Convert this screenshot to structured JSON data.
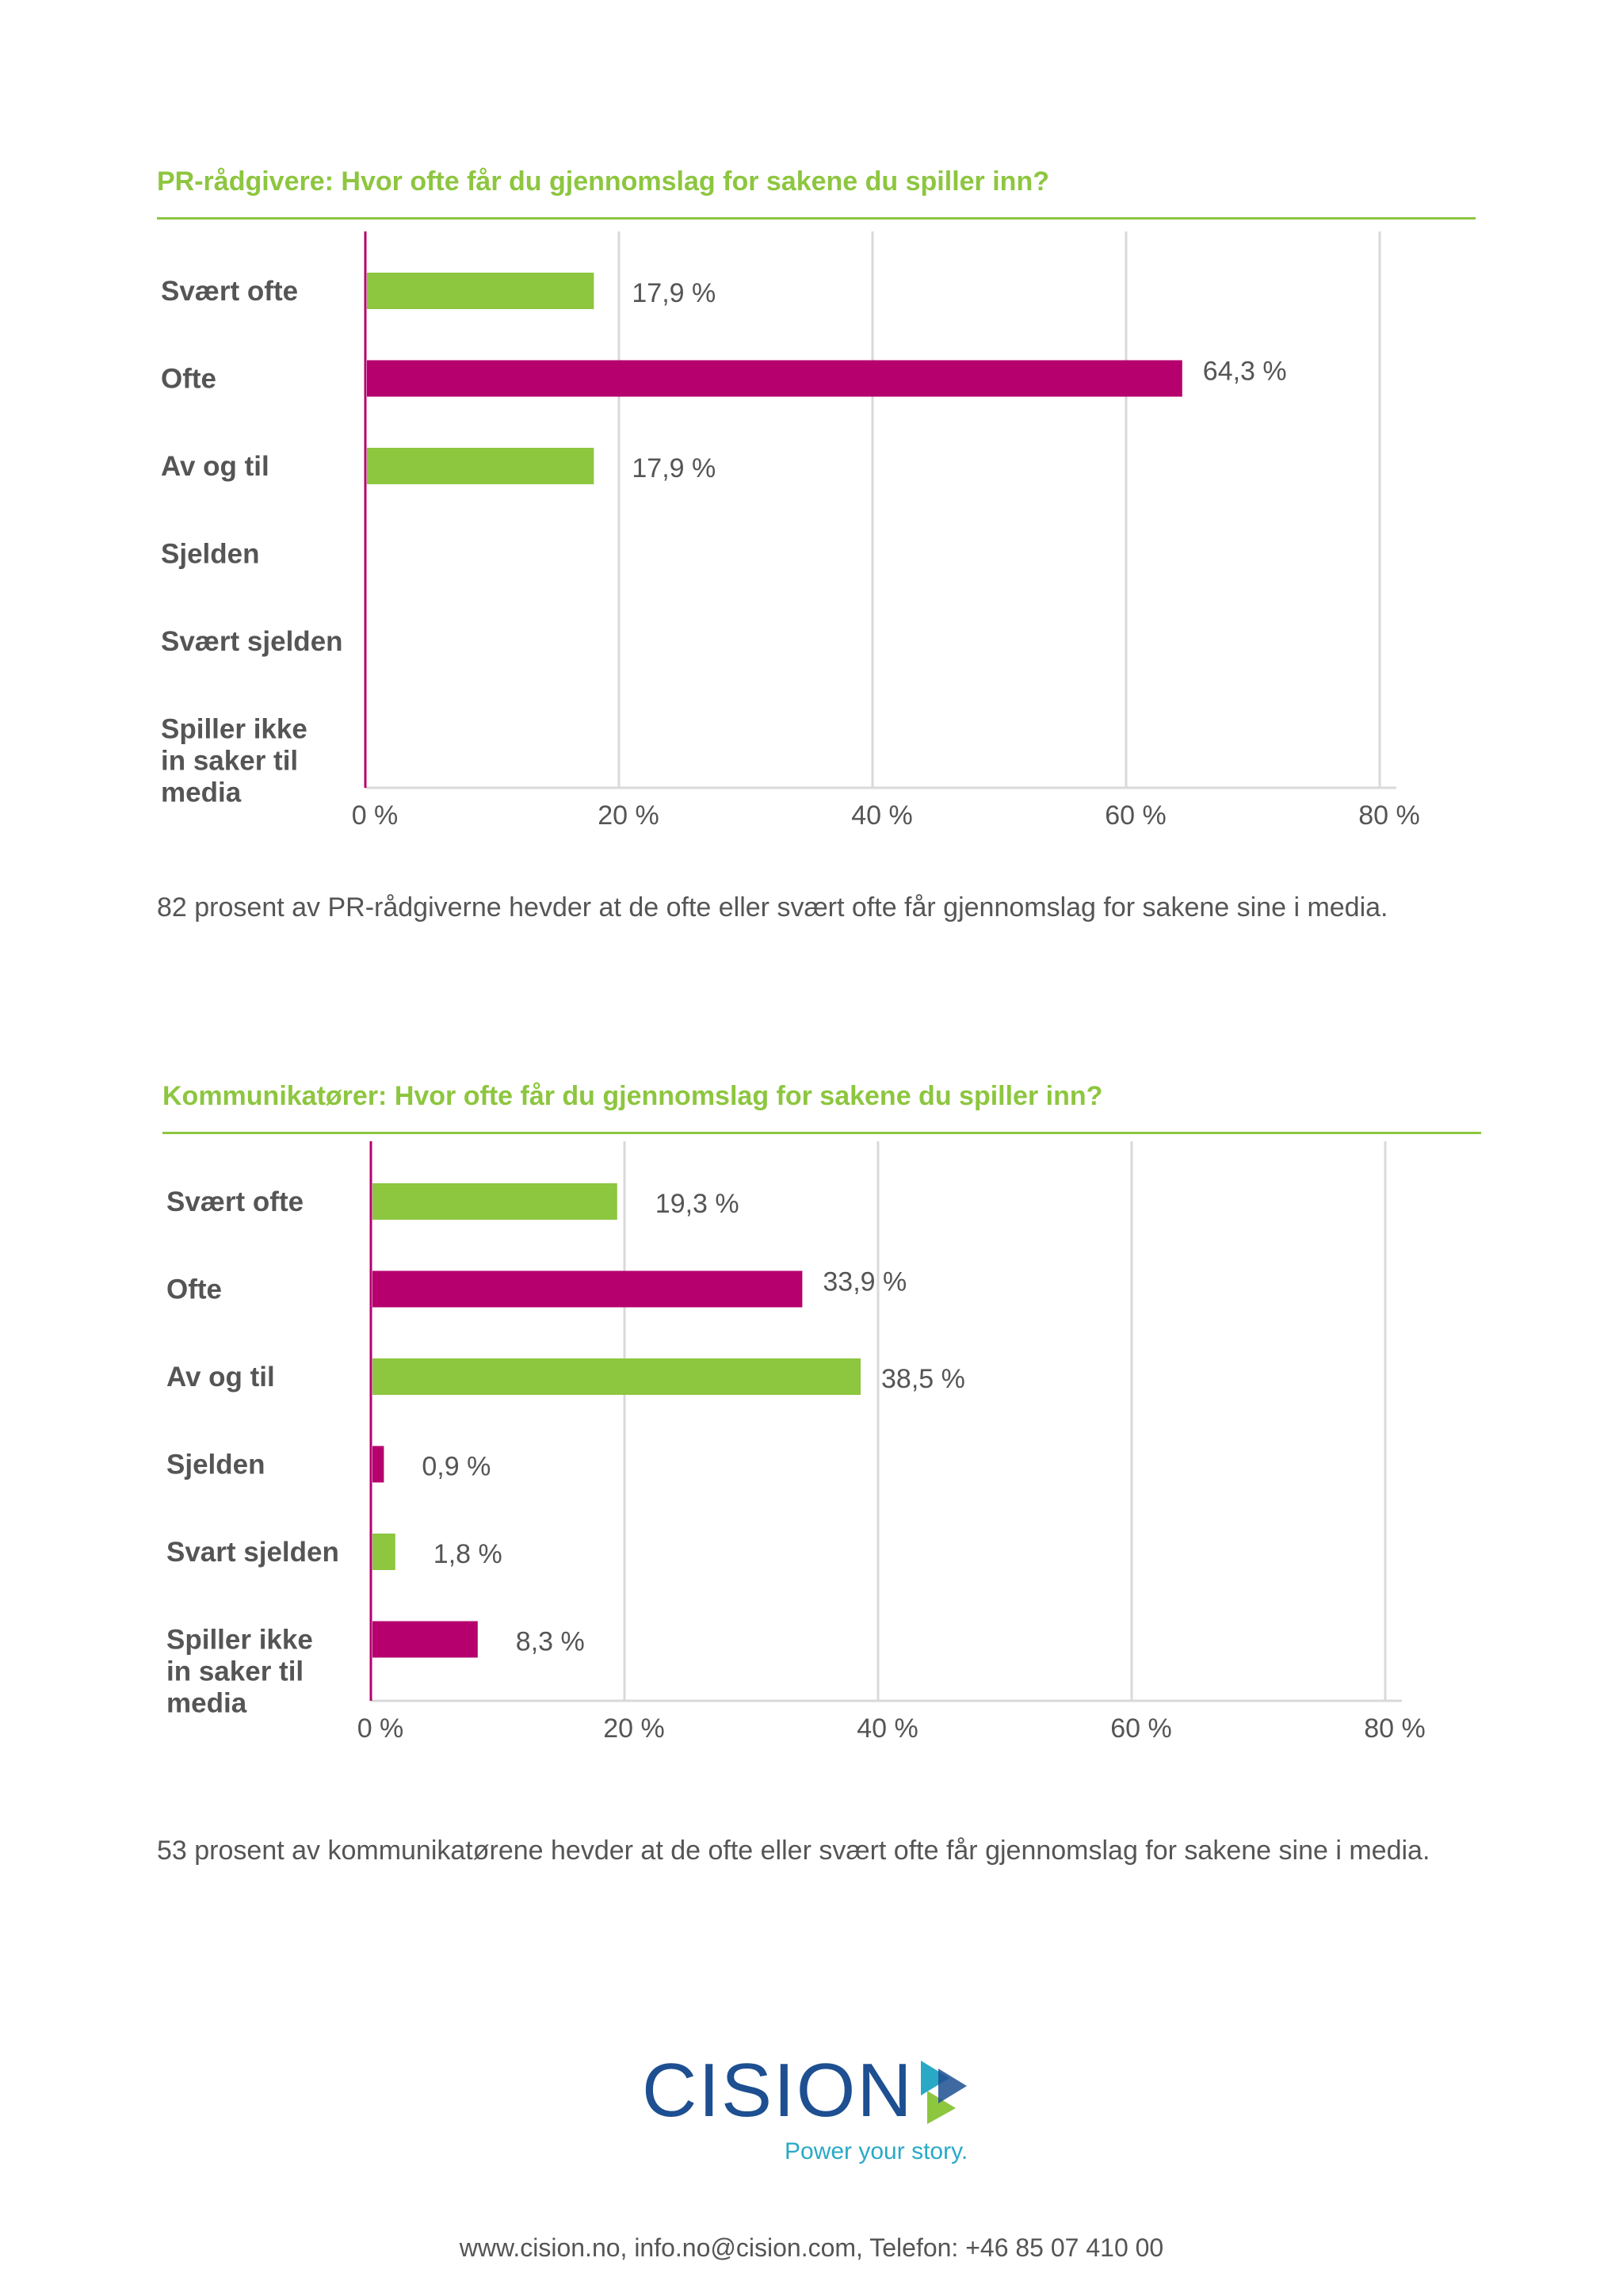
{
  "chart_data": [
    {
      "type": "bar",
      "orientation": "horizontal",
      "title": "PR-rådgivere: Hvor ofte får du gjennomslag for sakene du spiller inn?",
      "categories": [
        [
          "Svært ofte"
        ],
        [
          "Ofte"
        ],
        [
          "Av og til"
        ],
        [
          "Sjelden"
        ],
        [
          "Svært sjelden"
        ],
        [
          "Spiller ikke",
          "in saker til",
          "media"
        ]
      ],
      "values": [
        17.9,
        64.3,
        17.9,
        null,
        null,
        null
      ],
      "value_labels": [
        "17,9 %",
        "64,3 %",
        "17,9 %",
        "",
        "",
        ""
      ],
      "bar_colors": [
        "#8dc63f",
        "#b5006e",
        "#8dc63f",
        "#b5006e",
        "#8dc63f",
        "#b5006e"
      ],
      "xlim": [
        0,
        80
      ],
      "xticks": [
        0,
        20,
        40,
        60,
        80
      ],
      "xtick_labels": [
        "0 %",
        "20 %",
        "40 %",
        "60 %",
        "80 %"
      ],
      "grid": true,
      "caption": "82 prosent av PR-rådgiverne hevder at de ofte eller svært ofte får gjennomslag for sakene sine i media."
    },
    {
      "type": "bar",
      "orientation": "horizontal",
      "title": "Kommunikatører: Hvor ofte får du gjennomslag for sakene du spiller inn?",
      "categories": [
        [
          "Svært ofte"
        ],
        [
          "Ofte"
        ],
        [
          "Av og til"
        ],
        [
          "Sjelden"
        ],
        [
          "Svart sjelden"
        ],
        [
          "Spiller ikke",
          "in saker til",
          "media"
        ]
      ],
      "values": [
        19.3,
        33.9,
        38.5,
        0.9,
        1.8,
        8.3
      ],
      "value_labels": [
        "19,3 %",
        "33,9 %",
        "38,5 %",
        "0,9 %",
        "1,8 %",
        "8,3 %"
      ],
      "bar_colors": [
        "#8dc63f",
        "#b5006e",
        "#8dc63f",
        "#b5006e",
        "#8dc63f",
        "#b5006e"
      ],
      "xlim": [
        0,
        80
      ],
      "xticks": [
        0,
        20,
        40,
        60,
        80
      ],
      "xtick_labels": [
        "0 %",
        "20 %",
        "40 %",
        "60 %",
        "80 %"
      ],
      "grid": true,
      "caption": "53 prosent av kommunikatørene hevder at de ofte eller svært ofte får gjennomslag for sakene sine i media."
    }
  ],
  "logo": {
    "word": "CISION",
    "tagline": "Power your story."
  },
  "footer": {
    "contact": "www.cision.no, info.no@cision.com, Telefon: +46 85 07 410 00"
  },
  "colors": {
    "green": "#8dc63f",
    "magenta": "#b5006e",
    "text": "#555555",
    "grid": "#d9d9d9"
  }
}
